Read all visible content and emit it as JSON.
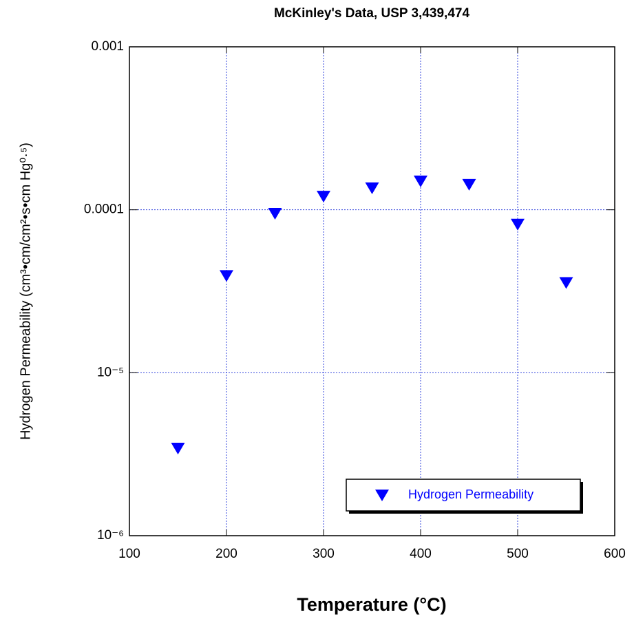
{
  "chart_data": {
    "type": "scatter",
    "title": "McKinley's Data, USP 3,439,474",
    "xlabel": "Temperature (°C)",
    "ylabel": "Hydrogen Permeability (cm³•cm/cm²•s•cm Hg⁰·⁵)",
    "series": [
      {
        "name": "Hydrogen Permeability",
        "color": "#0000ff",
        "marker": "triangle-down",
        "x": [
          150,
          200,
          250,
          300,
          350,
          400,
          450,
          500,
          550
        ],
        "values": [
          3.44e-06,
          3.94e-05,
          9.5e-05,
          0.000121,
          0.000136,
          0.00015,
          0.000143,
          8.15e-05,
          3.57e-05
        ]
      }
    ],
    "xlim": [
      100,
      600
    ],
    "xticks": [
      100,
      200,
      300,
      400,
      500,
      600
    ],
    "ylim": [
      1e-06,
      0.001
    ],
    "ylog": true,
    "yticks": [
      {
        "value": 1e-06,
        "label": "10⁻⁶"
      },
      {
        "value": 1e-05,
        "label": "10⁻⁵"
      },
      0.0001,
      0.001
    ],
    "grid": true,
    "grid_color": "#3344dd",
    "legend": "lower right"
  }
}
